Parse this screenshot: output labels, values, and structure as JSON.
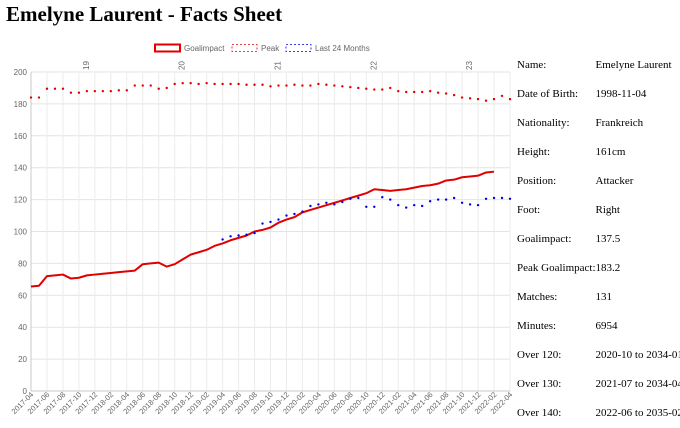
{
  "page": {
    "title": "Emelyne Laurent - Facts Sheet"
  },
  "facts": [
    {
      "label": "Name:",
      "value": "Emelyne Laurent"
    },
    {
      "label": "Date of Birth:",
      "value": "1998-11-04"
    },
    {
      "label": "Nationality:",
      "value": "Frankreich"
    },
    {
      "label": "Height:",
      "value": "161cm"
    },
    {
      "label": "Position:",
      "value": "Attacker"
    },
    {
      "label": "Foot:",
      "value": "Right"
    },
    {
      "label": "Goalimpact:",
      "value": "137.5"
    },
    {
      "label": "Peak Goalimpact:",
      "value": "183.2"
    },
    {
      "label": "Matches:",
      "value": "131"
    },
    {
      "label": "Minutes:",
      "value": "6954"
    },
    {
      "label": "Over 120:",
      "value": "2020-10 to 2034-01"
    },
    {
      "label": "Over 130:",
      "value": "2021-07 to 2034-04"
    },
    {
      "label": "Over 140:",
      "value": "2022-06 to 2035-02"
    }
  ],
  "chart_data": {
    "type": "line",
    "x": [
      "2017-04",
      "2017-05",
      "2017-06",
      "2017-07",
      "2017-08",
      "2017-09",
      "2017-10",
      "2017-11",
      "2017-12",
      "2018-01",
      "2018-02",
      "2018-03",
      "2018-04",
      "2018-05",
      "2018-06",
      "2018-07",
      "2018-08",
      "2018-09",
      "2018-10",
      "2018-11",
      "2018-12",
      "2019-01",
      "2019-02",
      "2019-03",
      "2019-04",
      "2019-05",
      "2019-06",
      "2019-07",
      "2019-08",
      "2019-09",
      "2019-10",
      "2019-11",
      "2019-12",
      "2020-01",
      "2020-02",
      "2020-03",
      "2020-04",
      "2020-05",
      "2020-06",
      "2020-07",
      "2020-08",
      "2020-09",
      "2020-10",
      "2020-11",
      "2020-12",
      "2021-01",
      "2021-02",
      "2021-03",
      "2021-04",
      "2021-05",
      "2021-06",
      "2021-07",
      "2021-08",
      "2021-09",
      "2021-10",
      "2021-11",
      "2021-12",
      "2022-01",
      "2022-02",
      "2022-03",
      "2022-04"
    ],
    "x_tick_labels": [
      "2017-04",
      "2017-06",
      "2017-08",
      "2017-10",
      "2017-12",
      "2018-02",
      "2018-04",
      "2018-06",
      "2018-08",
      "2018-10",
      "2018-12",
      "2019-02",
      "2019-04",
      "2019-06",
      "2019-08",
      "2019-10",
      "2019-12",
      "2020-02",
      "2020-04",
      "2020-06",
      "2020-08",
      "2020-10",
      "2020-12",
      "2021-02",
      "2021-04",
      "2021-06",
      "2021-08",
      "2021-10",
      "2021-12",
      "2022-02",
      "2022-04"
    ],
    "top_axis_labels": [
      {
        "label": "19",
        "at": "2017-11"
      },
      {
        "label": "20",
        "at": "2018-11"
      },
      {
        "label": "21",
        "at": "2019-11"
      },
      {
        "label": "22",
        "at": "2020-11"
      },
      {
        "label": "23",
        "at": "2021-11"
      }
    ],
    "ylim": [
      0,
      200
    ],
    "y_ticks": [
      0,
      20,
      40,
      60,
      80,
      100,
      120,
      140,
      160,
      180,
      200
    ],
    "grid": true,
    "legend_position": "top",
    "series": [
      {
        "name": "Goalimpact",
        "color": "#e00000",
        "style": "solid",
        "values": [
          65.5,
          66,
          72,
          72.5,
          73,
          70.5,
          71,
          72.5,
          73,
          73.5,
          74,
          74.5,
          75,
          75.5,
          79.5,
          80,
          80.5,
          78,
          79.5,
          82.5,
          85.5,
          87,
          88.5,
          91,
          92.5,
          94.5,
          96,
          97.5,
          100,
          101,
          102.5,
          105.5,
          107.5,
          109,
          112,
          113.5,
          115,
          116.5,
          118,
          119.5,
          121,
          122.5,
          124,
          126.5,
          126,
          125.5,
          126,
          126.5,
          127.5,
          128.5,
          129,
          130,
          132,
          132.5,
          134,
          134.5,
          135,
          137,
          137.5,
          null,
          null
        ]
      },
      {
        "name": "Peak",
        "color": "#e00000",
        "style": "dotted",
        "values": [
          184,
          184,
          189.5,
          189.5,
          189.5,
          187,
          187,
          188,
          188,
          188,
          188,
          188.5,
          188.5,
          191.5,
          191.5,
          191.5,
          189.5,
          190,
          192.5,
          193,
          193,
          192.5,
          193,
          192.5,
          192.5,
          192.5,
          192.5,
          192,
          192,
          192,
          191,
          191.5,
          191.5,
          192,
          191.5,
          191.5,
          192.5,
          192,
          191.5,
          191,
          190.5,
          190,
          189.5,
          189,
          189,
          190,
          188,
          187.5,
          187.5,
          187.5,
          188,
          187,
          186.5,
          185.5,
          184,
          183.5,
          183,
          182,
          183,
          185,
          183
        ]
      },
      {
        "name": "Last 24 Months",
        "color": "#0000e0",
        "style": "dotted",
        "values": [
          null,
          null,
          null,
          null,
          null,
          null,
          null,
          null,
          null,
          null,
          null,
          null,
          null,
          null,
          null,
          null,
          null,
          null,
          null,
          null,
          null,
          null,
          null,
          null,
          95,
          97,
          97.5,
          98,
          99,
          105,
          106,
          107.5,
          110,
          111,
          112.5,
          116,
          117,
          118,
          117,
          118.5,
          120.5,
          121,
          115.5,
          115.5,
          121.5,
          120,
          116.5,
          115,
          116.5,
          116,
          119,
          120,
          120,
          121,
          118,
          117,
          116.5,
          120.5,
          121,
          121,
          120.5
        ]
      }
    ]
  }
}
